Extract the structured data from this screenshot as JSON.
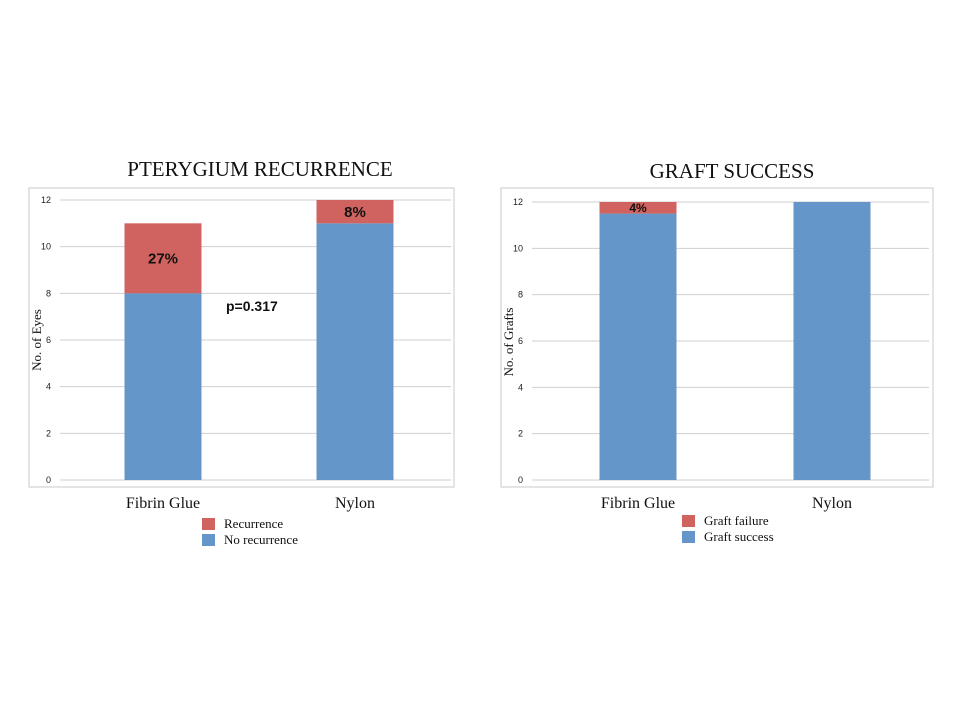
{
  "colors": {
    "red": "#d0635f",
    "blue": "#6496c9"
  },
  "chart_data": [
    {
      "type": "bar",
      "stacked": true,
      "title": "PTERYGIUM RECURRENCE",
      "categories": [
        "Fibrin Glue",
        "Nylon"
      ],
      "ylabel": "No. of Eyes",
      "ylim": [
        0,
        12
      ],
      "yticks": [
        0,
        2,
        4,
        6,
        8,
        10,
        12
      ],
      "grid": true,
      "series": [
        {
          "name": "No recurrence",
          "color": "#6496c9",
          "values": [
            8,
            11
          ],
          "labels": [
            "",
            ""
          ]
        },
        {
          "name": "Recurrence",
          "color": "#d0635f",
          "values": [
            3,
            1
          ],
          "labels": [
            "27%",
            "8%"
          ]
        }
      ],
      "annotations": [
        {
          "text": "p=0.317"
        }
      ],
      "legend": "bottom"
    },
    {
      "type": "bar",
      "stacked": true,
      "title": "GRAFT SUCCESS",
      "categories": [
        "Fibrin Glue",
        "Nylon"
      ],
      "ylabel": "No. of Grafts",
      "ylim": [
        0,
        12
      ],
      "yticks": [
        0,
        2,
        4,
        6,
        8,
        10,
        12
      ],
      "grid": true,
      "series": [
        {
          "name": "Graft success",
          "color": "#6496c9",
          "values": [
            11.5,
            12
          ],
          "labels": [
            "",
            ""
          ]
        },
        {
          "name": "Graft failure",
          "color": "#d0635f",
          "values": [
            0.5,
            0
          ],
          "labels": [
            "4%",
            ""
          ]
        }
      ],
      "annotations": [],
      "legend": "bottom"
    }
  ]
}
